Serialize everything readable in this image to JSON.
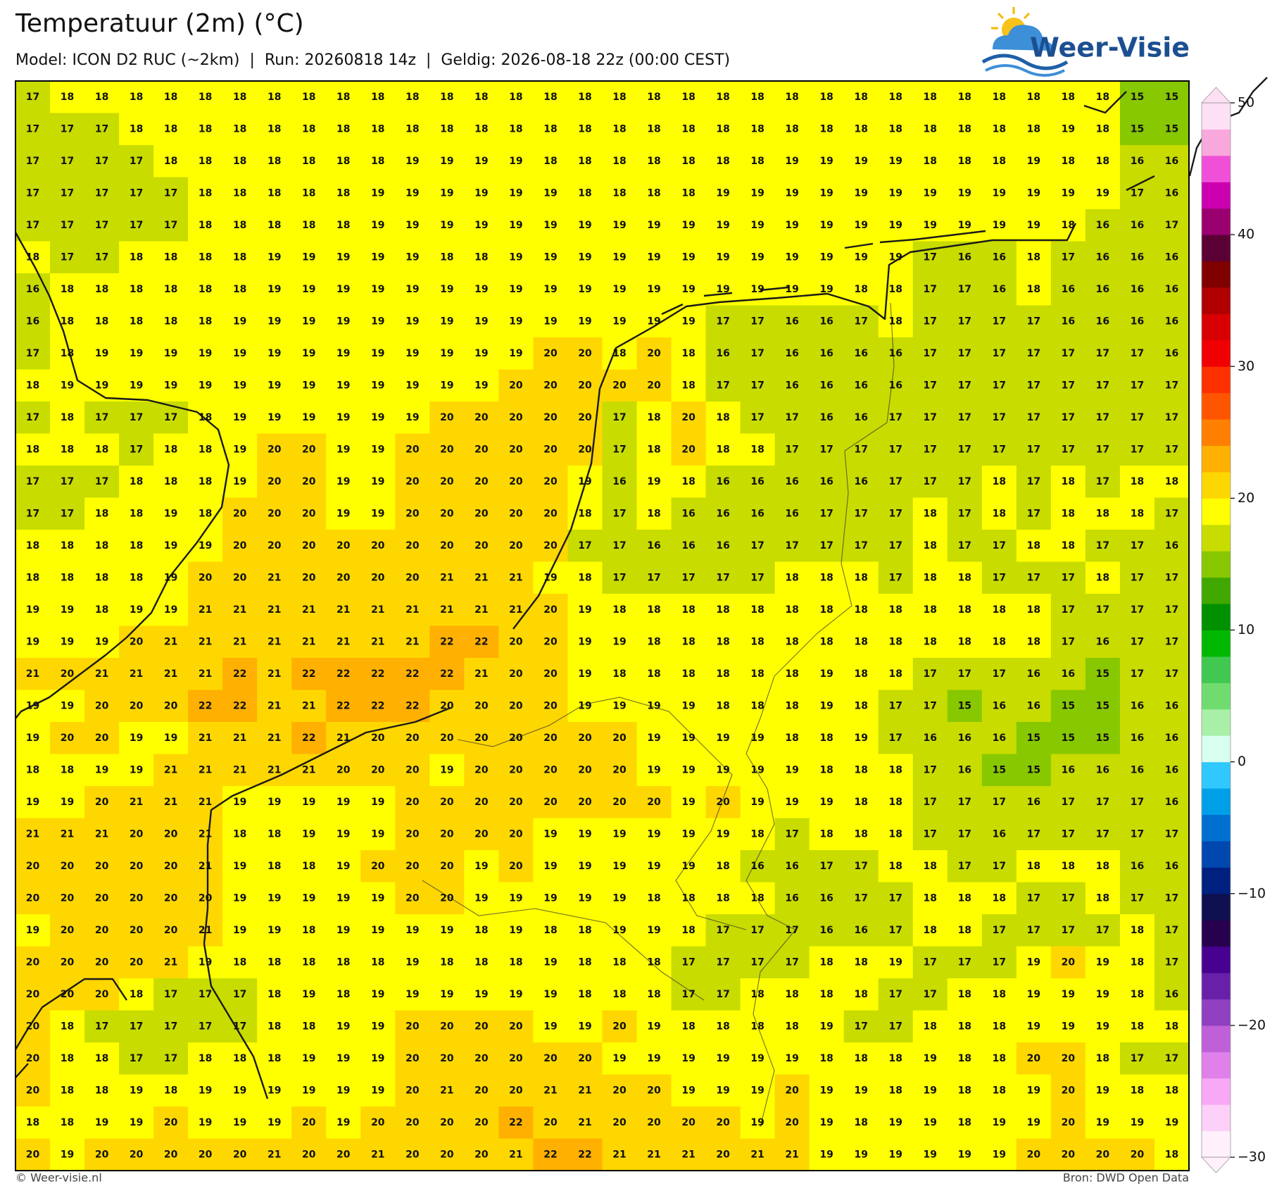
{
  "header": {
    "title": "Temperatuur (2m) (°C)",
    "subtitle": "Model: ICON D2 RUC (~2km)  |  Run: 20260818 14z  |  Geldig: 2026-08-18 22z (00:00 CEST)",
    "logo": "Weer-Visie"
  },
  "footer": {
    "left": "© Weer-visie.nl",
    "right": "Bron: DWD Open Data"
  },
  "colorbar": {
    "ticks": [
      {
        "value": -30,
        "label": "−30"
      },
      {
        "value": -20,
        "label": "−20"
      },
      {
        "value": -10,
        "label": "−10"
      },
      0,
      10,
      20,
      30,
      40,
      50
    ],
    "colors": [
      "#fff0fc",
      "#fcd0f8",
      "#f8a8f4",
      "#e080ea",
      "#c060d8",
      "#9040c0",
      "#6820a8",
      "#480090",
      "#280050",
      "#101050",
      "#002080",
      "#0048b0",
      "#0070d0",
      "#00a0e8",
      "#30c8ff",
      "#d8fff0",
      "#a8f0a8",
      "#70dc70",
      "#40c850",
      "#00b800",
      "#009000",
      "#40a800",
      "#88c800",
      "#c8dc00",
      "#ffff00",
      "#ffd700",
      "#ffb000",
      "#ff8000",
      "#ff5500",
      "#ff3000",
      "#f00000",
      "#d80000",
      "#b00000",
      "#800000",
      "#5a0035",
      "#9a0070",
      "#cc00b0",
      "#f050d8",
      "#f9a8dd",
      "#fde0f4"
    ]
  },
  "grid": [
    [
      17,
      18,
      18,
      18,
      18,
      18,
      18,
      18,
      18,
      18,
      18,
      18,
      18,
      18,
      18,
      18,
      18,
      18,
      18,
      18,
      18,
      18,
      18,
      18,
      18,
      18,
      18,
      18,
      18,
      18,
      18,
      18,
      15,
      15
    ],
    [
      17,
      17,
      17,
      18,
      18,
      18,
      18,
      18,
      18,
      18,
      18,
      18,
      18,
      18,
      18,
      18,
      18,
      18,
      18,
      18,
      18,
      18,
      18,
      18,
      18,
      18,
      18,
      18,
      18,
      18,
      19,
      18,
      15,
      15
    ],
    [
      17,
      17,
      17,
      17,
      18,
      18,
      18,
      18,
      18,
      18,
      18,
      19,
      19,
      19,
      19,
      18,
      18,
      18,
      18,
      18,
      18,
      18,
      19,
      19,
      19,
      19,
      18,
      18,
      18,
      19,
      18,
      18,
      16,
      16
    ],
    [
      17,
      17,
      17,
      17,
      17,
      18,
      18,
      18,
      18,
      18,
      19,
      19,
      19,
      19,
      19,
      19,
      18,
      18,
      18,
      18,
      19,
      19,
      19,
      19,
      19,
      19,
      19,
      19,
      19,
      19,
      19,
      19,
      17,
      16
    ],
    [
      17,
      17,
      17,
      17,
      17,
      18,
      18,
      18,
      18,
      18,
      19,
      19,
      19,
      19,
      19,
      19,
      19,
      19,
      19,
      19,
      19,
      19,
      19,
      19,
      19,
      19,
      19,
      19,
      19,
      19,
      18,
      16,
      16,
      17
    ],
    [
      18,
      17,
      17,
      18,
      18,
      18,
      18,
      19,
      19,
      19,
      19,
      19,
      18,
      18,
      19,
      19,
      19,
      19,
      19,
      19,
      19,
      19,
      19,
      19,
      19,
      19,
      17,
      16,
      16,
      18,
      17,
      16,
      16,
      16
    ],
    [
      16,
      18,
      18,
      18,
      18,
      18,
      18,
      19,
      19,
      19,
      19,
      19,
      19,
      19,
      19,
      19,
      19,
      19,
      19,
      19,
      19,
      19,
      19,
      19,
      18,
      18,
      17,
      17,
      16,
      18,
      16,
      16,
      16,
      16
    ],
    [
      16,
      18,
      18,
      18,
      18,
      18,
      19,
      19,
      19,
      19,
      19,
      19,
      19,
      19,
      19,
      19,
      19,
      19,
      19,
      19,
      17,
      17,
      16,
      16,
      17,
      18,
      17,
      17,
      17,
      17,
      16,
      16,
      16,
      16
    ],
    [
      17,
      18,
      19,
      19,
      19,
      19,
      19,
      19,
      19,
      19,
      19,
      19,
      19,
      19,
      19,
      20,
      20,
      18,
      20,
      18,
      16,
      17,
      16,
      16,
      16,
      16,
      17,
      17,
      17,
      17,
      17,
      17,
      17,
      16
    ],
    [
      18,
      19,
      19,
      19,
      19,
      19,
      19,
      19,
      19,
      19,
      19,
      19,
      19,
      19,
      20,
      20,
      20,
      20,
      20,
      18,
      17,
      17,
      16,
      16,
      16,
      16,
      17,
      17,
      17,
      17,
      17,
      17,
      17,
      17
    ],
    [
      17,
      18,
      17,
      17,
      17,
      18,
      19,
      19,
      19,
      19,
      19,
      19,
      20,
      20,
      20,
      20,
      20,
      17,
      18,
      20,
      18,
      17,
      17,
      16,
      16,
      17,
      17,
      17,
      17,
      17,
      17,
      17,
      17,
      17
    ],
    [
      18,
      18,
      18,
      17,
      18,
      18,
      19,
      20,
      20,
      19,
      19,
      20,
      20,
      20,
      20,
      20,
      20,
      17,
      18,
      20,
      18,
      18,
      17,
      17,
      17,
      17,
      17,
      17,
      17,
      17,
      17,
      17,
      17,
      17
    ],
    [
      17,
      17,
      17,
      18,
      18,
      18,
      19,
      20,
      20,
      19,
      19,
      20,
      20,
      20,
      20,
      20,
      19,
      16,
      19,
      18,
      16,
      16,
      16,
      16,
      16,
      17,
      17,
      17,
      18,
      17,
      18,
      17,
      18,
      18
    ],
    [
      17,
      17,
      18,
      18,
      19,
      18,
      20,
      20,
      20,
      19,
      19,
      20,
      20,
      20,
      20,
      20,
      18,
      17,
      18,
      16,
      16,
      16,
      16,
      17,
      17,
      17,
      18,
      17,
      18,
      17,
      18,
      18,
      18,
      17
    ],
    [
      18,
      18,
      18,
      18,
      19,
      19,
      20,
      20,
      20,
      20,
      20,
      20,
      20,
      20,
      20,
      20,
      17,
      17,
      16,
      16,
      16,
      17,
      17,
      17,
      17,
      17,
      18,
      17,
      17,
      18,
      18,
      17,
      17,
      16
    ],
    [
      18,
      18,
      18,
      18,
      19,
      20,
      20,
      21,
      20,
      20,
      20,
      20,
      21,
      21,
      21,
      19,
      18,
      17,
      17,
      17,
      17,
      17,
      18,
      18,
      18,
      17,
      18,
      18,
      17,
      17,
      17,
      18,
      17,
      17
    ],
    [
      19,
      19,
      18,
      19,
      19,
      21,
      21,
      21,
      21,
      21,
      21,
      21,
      21,
      21,
      21,
      20,
      19,
      18,
      18,
      18,
      18,
      18,
      18,
      18,
      18,
      18,
      18,
      18,
      18,
      18,
      17,
      17,
      17,
      17
    ],
    [
      19,
      19,
      19,
      20,
      21,
      21,
      21,
      21,
      21,
      21,
      21,
      21,
      22,
      22,
      20,
      20,
      19,
      19,
      18,
      18,
      18,
      18,
      18,
      18,
      18,
      18,
      18,
      18,
      18,
      18,
      17,
      16,
      17,
      17
    ],
    [
      21,
      20,
      21,
      21,
      21,
      21,
      22,
      21,
      22,
      22,
      22,
      22,
      22,
      21,
      20,
      20,
      19,
      18,
      18,
      18,
      18,
      18,
      18,
      19,
      18,
      18,
      17,
      17,
      17,
      16,
      16,
      15,
      17,
      17
    ],
    [
      19,
      19,
      20,
      20,
      20,
      22,
      22,
      21,
      21,
      22,
      22,
      22,
      20,
      20,
      20,
      20,
      19,
      19,
      19,
      19,
      18,
      18,
      18,
      19,
      18,
      17,
      17,
      15,
      16,
      16,
      15,
      15,
      16,
      16
    ],
    [
      19,
      20,
      20,
      19,
      19,
      21,
      21,
      21,
      22,
      21,
      20,
      20,
      20,
      20,
      20,
      20,
      20,
      20,
      19,
      19,
      19,
      19,
      18,
      18,
      19,
      17,
      16,
      16,
      16,
      15,
      15,
      15,
      16,
      16
    ],
    [
      18,
      18,
      19,
      19,
      21,
      21,
      21,
      21,
      21,
      20,
      20,
      20,
      19,
      20,
      20,
      20,
      20,
      20,
      19,
      19,
      19,
      19,
      19,
      18,
      18,
      18,
      17,
      16,
      15,
      15,
      16,
      16,
      16,
      16
    ],
    [
      19,
      19,
      20,
      21,
      21,
      21,
      19,
      19,
      19,
      19,
      19,
      20,
      20,
      20,
      20,
      20,
      20,
      20,
      20,
      19,
      20,
      19,
      19,
      19,
      18,
      18,
      17,
      17,
      17,
      16,
      17,
      17,
      17,
      16
    ],
    [
      21,
      21,
      21,
      20,
      20,
      21,
      18,
      18,
      19,
      19,
      19,
      20,
      20,
      20,
      20,
      19,
      19,
      19,
      19,
      19,
      19,
      18,
      17,
      18,
      18,
      18,
      17,
      17,
      16,
      17,
      17,
      17,
      17,
      17
    ],
    [
      20,
      20,
      20,
      20,
      20,
      21,
      19,
      18,
      18,
      19,
      20,
      20,
      20,
      19,
      20,
      19,
      19,
      19,
      19,
      19,
      18,
      16,
      16,
      17,
      17,
      18,
      18,
      17,
      17,
      18,
      18,
      18,
      16,
      16
    ],
    [
      20,
      20,
      20,
      20,
      20,
      20,
      19,
      19,
      19,
      19,
      19,
      20,
      20,
      19,
      19,
      19,
      19,
      19,
      18,
      18,
      18,
      18,
      16,
      16,
      17,
      17,
      18,
      18,
      18,
      17,
      17,
      18,
      17,
      17
    ],
    [
      19,
      20,
      20,
      20,
      20,
      21,
      19,
      19,
      18,
      19,
      19,
      19,
      19,
      18,
      19,
      18,
      18,
      19,
      19,
      18,
      17,
      17,
      17,
      16,
      16,
      17,
      18,
      18,
      17,
      17,
      17,
      17,
      18,
      17
    ],
    [
      20,
      20,
      20,
      20,
      21,
      19,
      18,
      18,
      18,
      18,
      18,
      19,
      18,
      18,
      18,
      19,
      18,
      18,
      18,
      17,
      17,
      17,
      17,
      18,
      18,
      19,
      17,
      17,
      17,
      19,
      20,
      19,
      18,
      17
    ],
    [
      20,
      20,
      20,
      18,
      17,
      17,
      17,
      18,
      19,
      18,
      19,
      19,
      19,
      19,
      19,
      19,
      18,
      18,
      18,
      17,
      17,
      18,
      18,
      18,
      18,
      17,
      17,
      18,
      18,
      19,
      19,
      19,
      18,
      16
    ],
    [
      20,
      18,
      17,
      17,
      17,
      17,
      17,
      18,
      18,
      19,
      19,
      20,
      20,
      20,
      20,
      19,
      19,
      20,
      19,
      18,
      18,
      18,
      18,
      19,
      17,
      17,
      18,
      18,
      18,
      19,
      19,
      19,
      18,
      18
    ],
    [
      20,
      18,
      18,
      17,
      17,
      18,
      18,
      18,
      19,
      19,
      19,
      20,
      20,
      20,
      20,
      20,
      20,
      19,
      19,
      19,
      19,
      19,
      19,
      18,
      18,
      18,
      19,
      18,
      18,
      20,
      20,
      18,
      17,
      17
    ],
    [
      20,
      18,
      18,
      19,
      18,
      19,
      19,
      19,
      19,
      19,
      19,
      20,
      21,
      20,
      20,
      21,
      21,
      20,
      20,
      19,
      19,
      19,
      20,
      19,
      19,
      18,
      19,
      18,
      18,
      19,
      20,
      19,
      18,
      18
    ],
    [
      18,
      18,
      19,
      19,
      20,
      19,
      19,
      19,
      20,
      19,
      20,
      20,
      20,
      20,
      22,
      20,
      21,
      20,
      20,
      20,
      20,
      19,
      20,
      19,
      18,
      19,
      19,
      18,
      19,
      19,
      20,
      19,
      19,
      19
    ],
    [
      20,
      19,
      20,
      20,
      20,
      20,
      20,
      21,
      20,
      20,
      21,
      20,
      20,
      20,
      21,
      22,
      22,
      21,
      21,
      21,
      20,
      21,
      21,
      19,
      19,
      19,
      19,
      19,
      19,
      20,
      20,
      20,
      20,
      18
    ]
  ]
}
